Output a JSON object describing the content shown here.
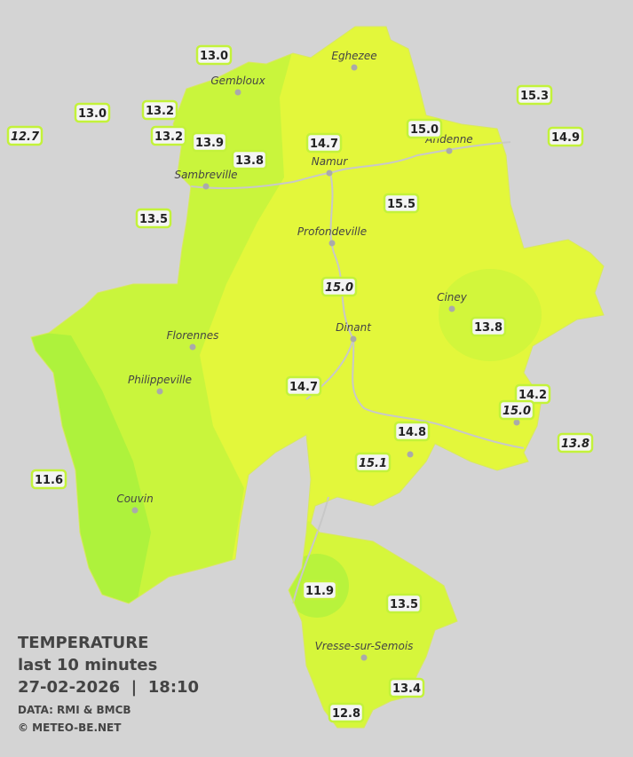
{
  "cities": [
    "Eghezee",
    "Gembloux",
    "Andenne",
    "Namur",
    "Sambreville",
    "Profondeville",
    "Ciney",
    "Dinant",
    "Florennes",
    "Philippeville",
    "Couvin",
    "Vresse-sur-Semois"
  ],
  "readings": [
    "13.0",
    "13.0",
    "13.2",
    "13.2",
    "13.9",
    "13.8",
    "14.7",
    "15.0",
    "15.3",
    "14.9",
    "13.5",
    "15.5",
    "13.8",
    "14.7",
    "14.2",
    "14.8",
    "11.6",
    "11.9",
    "13.5",
    "13.4",
    "12.8"
  ],
  "readings_italic": [
    "12.7",
    "15.0",
    "15.0",
    "15.1",
    "13.8"
  ],
  "legend": {
    "title": "TEMPERATURE",
    "subtitle": "last 10 minutes",
    "datetime": "27-02-2026  |  18:10",
    "source": "DATA: RMI & BMCB",
    "credit": "© METEO-BE.NET"
  }
}
